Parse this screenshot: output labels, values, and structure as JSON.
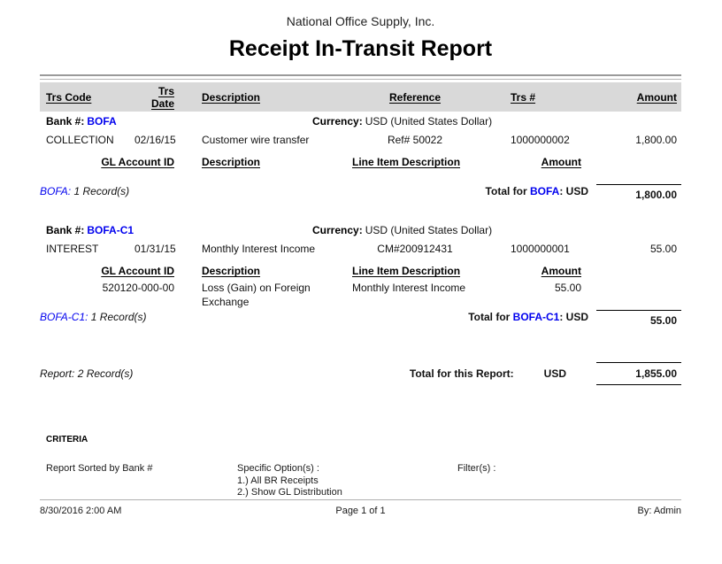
{
  "header": {
    "company": "National Office Supply, Inc.",
    "title": "Receipt In-Transit Report"
  },
  "table": {
    "columns": [
      "Trs Code",
      "Trs Date",
      "Description",
      "Reference",
      "Trs #",
      "Amount"
    ],
    "sub_columns": [
      "GL Account ID",
      "Description",
      "Line Item Description",
      "Amount"
    ]
  },
  "sections": [
    {
      "bank_label": "Bank #:",
      "bank_code": "BOFA",
      "currency_label": "Currency:",
      "currency_value": "USD (United States Dollar)",
      "row": {
        "trs_code": "COLLECTION",
        "trs_date": "02/16/15",
        "description": "Customer wire transfer",
        "reference": "Ref# 50022",
        "trs_number": "1000000002",
        "amount": "1,800.00"
      },
      "summary": {
        "records_code": "BOFA:",
        "records_text": "1 Record(s)",
        "total_prefix": "Total for ",
        "total_code": "BOFA",
        "total_suffix": ": USD",
        "total_amount": "1,800.00"
      }
    },
    {
      "bank_label": "Bank #:",
      "bank_code": "BOFA-C1",
      "currency_label": "Currency:",
      "currency_value": "USD (United States Dollar)",
      "row": {
        "trs_code": "INTEREST",
        "trs_date": "01/31/15",
        "description": "Monthly Interest Income",
        "reference": "CM#200912431",
        "trs_number": "1000000001",
        "amount": "55.00"
      },
      "gl_row": {
        "account_id": "520120-000-00",
        "description": "Loss (Gain) on Foreign Exchange",
        "line_item": "Monthly Interest Income",
        "amount": "55.00"
      },
      "summary": {
        "records_code": "BOFA-C1:",
        "records_text": "1 Record(s)",
        "total_prefix": "Total for ",
        "total_code": "BOFA-C1",
        "total_suffix": ": USD",
        "total_amount": "55.00"
      }
    }
  ],
  "report_total": {
    "records_label": "Report:",
    "records_text": "2 Record(s)",
    "label": "Total for this Report:",
    "currency": "USD",
    "amount": "1,855.00"
  },
  "criteria": {
    "heading": "CRITERIA",
    "sorted_by": "Report Sorted by Bank #",
    "options_label": "Specific Option(s) :",
    "options": [
      "1.) All BR Receipts",
      "2.) Show GL Distribution"
    ],
    "filters_label": "Filter(s) :"
  },
  "footer": {
    "datetime": "8/30/2016 2:00 AM",
    "page": "Page 1 of 1",
    "by": "By: Admin"
  },
  "colors": {
    "accent_blue": "#0000ee",
    "header_band": "#d9d9d9"
  }
}
